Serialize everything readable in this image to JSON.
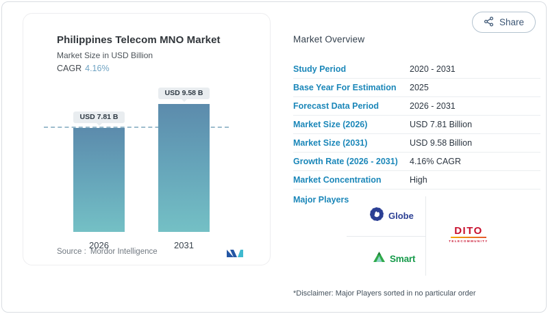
{
  "header": {
    "share_label": "Share"
  },
  "chart_card": {
    "title": "Philippines Telecom MNO Market",
    "subtitle": "Market Size in USD Billion",
    "cagr_label": "CAGR",
    "cagr_value": "4.16%",
    "source_label": "Source :",
    "source_brand": "Mordor Intelligence"
  },
  "chart_data": {
    "type": "bar",
    "title": "Philippines Telecom MNO Market",
    "unit": "USD Billion",
    "categories": [
      "2026",
      "2031"
    ],
    "values": [
      7.81,
      9.58
    ],
    "value_labels": [
      "USD 7.81 B",
      "USD 9.58 B"
    ],
    "cagr_percent": 4.16,
    "ylim": [
      0,
      10.5
    ],
    "reference_line_value": 7.81,
    "bar_gradient_top": "#5c8bac",
    "bar_gradient_bottom": "#74c0c5",
    "grid": false,
    "legend": "none"
  },
  "overview": {
    "heading": "Market Overview",
    "rows": [
      {
        "label": "Study Period",
        "value": "2020 - 2031"
      },
      {
        "label": "Base Year For Estimation",
        "value": "2025"
      },
      {
        "label": "Forecast Data Period",
        "value": "2026 - 2031"
      },
      {
        "label": "Market Size (2026)",
        "value": "USD 7.81 Billion"
      },
      {
        "label": "Market Size (2031)",
        "value": "USD 9.58 Billion"
      },
      {
        "label": "Growth Rate (2026 - 2031)",
        "value": "4.16% CAGR"
      },
      {
        "label": "Market Concentration",
        "value": "High"
      }
    ],
    "major_players_label": "Major Players",
    "players": [
      {
        "name": "Globe"
      },
      {
        "name": "Smart"
      },
      {
        "name": "DITO",
        "subtitle": "TELECOMMUNITY"
      }
    ],
    "disclaimer": "*Disclaimer: Major Players sorted in no particular order"
  },
  "colors": {
    "label_blue": "#1b87b9",
    "cagr_teal": "#6fa3c3",
    "globe_blue": "#2b3f94",
    "smart_green": "#169a4a",
    "dito_red": "#c8102e"
  },
  "icons": {
    "share": "share-nodes-icon",
    "brand": "mordor-intelligence-logo"
  }
}
